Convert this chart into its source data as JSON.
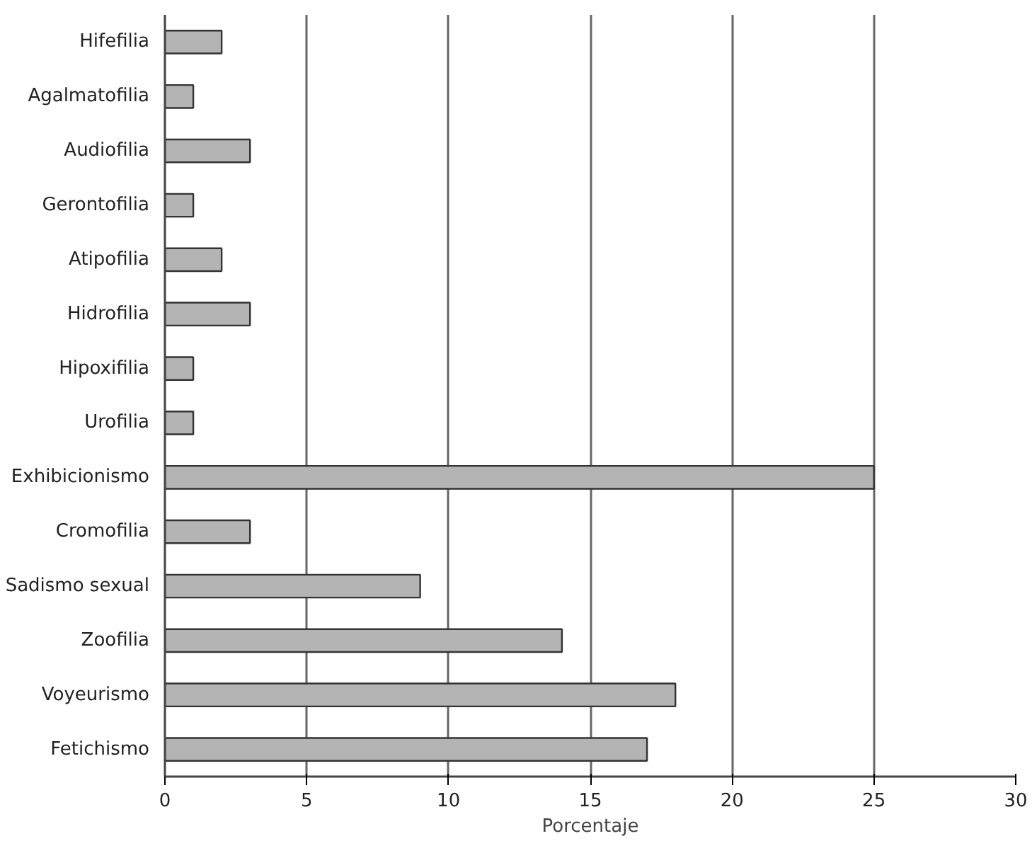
{
  "chart_data": {
    "type": "bar",
    "orientation": "horizontal",
    "xlabel": "Porcentaje",
    "categories": [
      "Hifefilia",
      "Agalmatofilia",
      "Audiofilia",
      "Gerontofilia",
      "Atipofilia",
      "Hidrofilia",
      "Hipoxifilia",
      "Urofilia",
      "Exhibicionismo",
      "Cromofilia",
      "Sadismo sexual",
      "Zoofilia",
      "Voyeurismo",
      "Fetichismo"
    ],
    "values": [
      2,
      1,
      3,
      1,
      2,
      3,
      1,
      1,
      25,
      3,
      9,
      14,
      18,
      17
    ],
    "color": "#b4b4b4",
    "xlim": [
      0,
      30
    ],
    "xticks": [
      0,
      5,
      10,
      15,
      20,
      25,
      30
    ],
    "grid": "x"
  }
}
